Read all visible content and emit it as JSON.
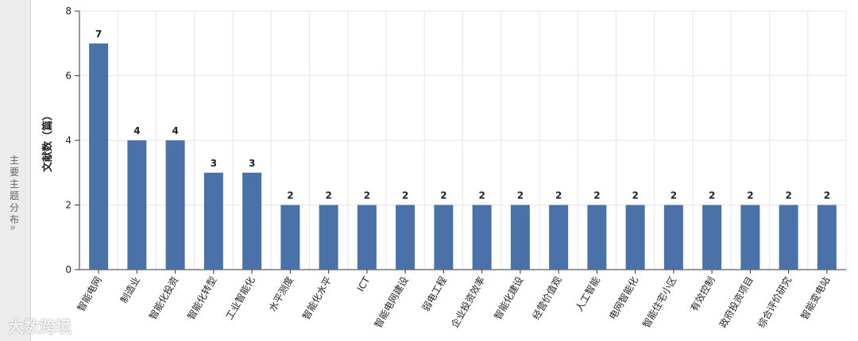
{
  "sidebar": {
    "label": "主要主题分布"
  },
  "watermark": "大数跨境",
  "chart_data": {
    "type": "bar",
    "ylabel": "文献数（篇）",
    "categories": [
      "智能电网",
      "制造业",
      "智能化投资",
      "智能化转型",
      "工业智能化",
      "水平测度",
      "智能化水平",
      "ICT",
      "智能电网建设",
      "弱电工程",
      "企业投资效率",
      "智能化建设",
      "经营价值观",
      "人工智能",
      "电网智能化",
      "智能住宅小区",
      "有效控制",
      "政府投资项目",
      "综合评价研究",
      "智能变电站"
    ],
    "values": [
      7,
      4,
      4,
      3,
      3,
      2,
      2,
      2,
      2,
      2,
      2,
      2,
      2,
      2,
      2,
      2,
      2,
      2,
      2,
      2
    ],
    "color": "#4a72a8",
    "ylim": [
      0,
      8
    ],
    "yticks": [
      0,
      2,
      4,
      6,
      8
    ],
    "grid": true
  }
}
